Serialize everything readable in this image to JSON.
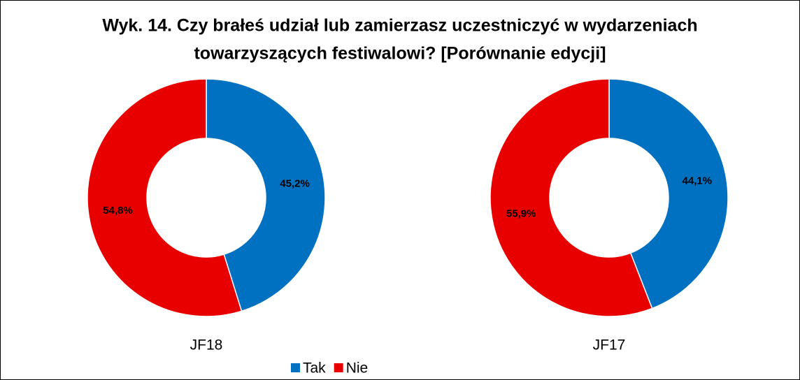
{
  "title": [
    "Wyk. 14. Czy brałeś udział lub zamierzasz uczestniczyć w wydarzeniach",
    "towarzyszących festiwalowi? [Porównanie edycji]"
  ],
  "chart_data": [
    {
      "type": "donut",
      "label": "JF18",
      "categories": [
        "Tak",
        "Nie"
      ],
      "values": [
        45.2,
        54.8
      ],
      "value_labels": [
        "45,2%",
        "54,8%"
      ],
      "colors": [
        "#0070C0",
        "#E80000"
      ]
    },
    {
      "type": "donut",
      "label": "JF17",
      "categories": [
        "Tak",
        "Nie"
      ],
      "values": [
        44.1,
        55.9
      ],
      "value_labels": [
        "44,1%",
        "55,9%"
      ],
      "colors": [
        "#0070C0",
        "#E80000"
      ]
    }
  ]
}
